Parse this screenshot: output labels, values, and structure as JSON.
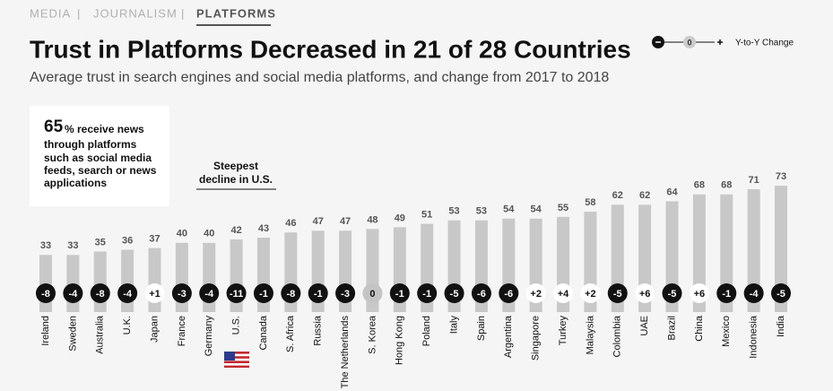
{
  "breadcrumb": [
    "MEDIA",
    "JOURNALISM",
    "PLATFORMS"
  ],
  "chart_data": {
    "type": "bar",
    "title": "Trust in Platforms Decreased in 21 of 28 Countries",
    "subtitle": "Average trust in search engines and social media platforms, and change from 2017 to 2018",
    "legend": {
      "zero": 0,
      "label": "Y-to-Y Change"
    },
    "callout": {
      "figure": 65,
      "lines": [
        "% receive news",
        "through platforms",
        "such as social media",
        "feeds, search or news",
        "applications"
      ]
    },
    "annotation": [
      "Steepest",
      "decline in U.S."
    ],
    "categories": [
      "Ireland",
      "Sweden",
      "Australia",
      "U.K.",
      "Japan",
      "France",
      "Germany",
      "U.S.",
      "Canada",
      "S. Africa",
      "Russia",
      "The Netherlands",
      "S. Korea",
      "Hong Kong",
      "Poland",
      "Italy",
      "Spain",
      "Argentina",
      "Singapore",
      "Turkey",
      "Malaysia",
      "Colombia",
      "UAE",
      "Brazil",
      "China",
      "Mexico",
      "Indonesia",
      "India"
    ],
    "color": "#c8c8c8",
    "values": [
      33,
      33,
      35,
      36,
      37,
      40,
      40,
      42,
      43,
      46,
      47,
      47,
      48,
      49,
      51,
      53,
      53,
      54,
      54,
      55,
      58,
      62,
      62,
      64,
      68,
      68,
      71,
      73
    ],
    "change": {
      "values": [
        -8,
        -4,
        -8,
        -4,
        1,
        -3,
        -4,
        -11,
        -1,
        -8,
        -1,
        -3,
        0,
        -1,
        -1,
        -5,
        -6,
        -6,
        2,
        4,
        2,
        -5,
        6,
        -5,
        6,
        -1,
        -4,
        -5
      ],
      "value_labels": [
        "-8",
        "-4",
        "-8",
        "-4",
        "+1",
        "-3",
        "-4",
        "-11",
        "-1",
        "-8",
        "-1",
        "-3",
        "0",
        "-1",
        "-1",
        "-5",
        "-6",
        "-6",
        "+2",
        "+4",
        "+2",
        "-5",
        "+6",
        "-5",
        "+6",
        "-1",
        "-4",
        "-5"
      ]
    }
  }
}
